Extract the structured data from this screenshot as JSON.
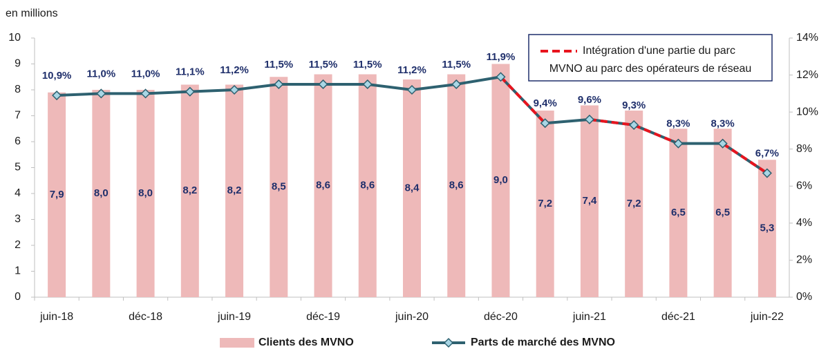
{
  "chart_data": {
    "type": "bar",
    "subtitle": "en millions",
    "categories": [
      "juin-18",
      null,
      "déc-18",
      null,
      "juin-19",
      null,
      "déc-19",
      null,
      "juin-20",
      null,
      "déc-20",
      null,
      "juin-21",
      null,
      "déc-21",
      null,
      "juin-22"
    ],
    "series": [
      {
        "name": "Clients des MVNO",
        "type": "bar",
        "color": "#eeb9b9",
        "values": [
          7.9,
          8.0,
          8.0,
          8.2,
          8.2,
          8.5,
          8.6,
          8.6,
          8.4,
          8.6,
          9.0,
          7.2,
          7.4,
          7.2,
          6.5,
          6.5,
          5.3
        ],
        "value_labels": [
          "7,9",
          "8,0",
          "8,0",
          "8,2",
          "8,2",
          "8,5",
          "8,6",
          "8,6",
          "8,4",
          "8,6",
          "9,0",
          "7,2",
          "7,4",
          "7,2",
          "6,5",
          "6,5",
          "5,3"
        ]
      },
      {
        "name": "Parts de marché des MVNO",
        "type": "line",
        "axis": "y2",
        "color": "#2e6170",
        "marker_color": "#a9d6e5",
        "values": [
          10.9,
          11.0,
          11.0,
          11.1,
          11.2,
          11.5,
          11.5,
          11.5,
          11.2,
          11.5,
          11.9,
          9.4,
          9.6,
          9.3,
          8.3,
          8.3,
          6.7
        ],
        "value_labels": [
          "10,9%",
          "11,0%",
          "11,0%",
          "11,1%",
          "11,2%",
          "11,5%",
          "11,5%",
          "11,5%",
          "11,2%",
          "11,5%",
          "11,9%",
          "9,4%",
          "9,6%",
          "9,3%",
          "8,3%",
          "8,3%",
          "6,7%"
        ]
      }
    ],
    "annotation": {
      "lines": [
        "Intégration d'une partie du parc",
        "MVNO au parc des opérateurs de réseau"
      ],
      "color": "#e8141e",
      "segments": [
        [
          10,
          11
        ],
        [
          12,
          13
        ],
        [
          13,
          14
        ],
        [
          15,
          16
        ]
      ]
    },
    "ylim": [
      0,
      10
    ],
    "yticks": [
      0,
      1,
      2,
      3,
      4,
      5,
      6,
      7,
      8,
      9,
      10
    ],
    "y2lim": [
      0,
      14
    ],
    "y2ticks": [
      {
        "value": 0,
        "label": "0%"
      },
      {
        "value": 2,
        "label": "2%"
      },
      {
        "value": 4,
        "label": "4%"
      },
      {
        "value": 6,
        "label": "6%"
      },
      {
        "value": 8,
        "label": "8%"
      },
      {
        "value": 10,
        "label": "10%"
      },
      {
        "value": 12,
        "label": "12%"
      },
      {
        "value": 14,
        "label": "14%"
      }
    ]
  }
}
